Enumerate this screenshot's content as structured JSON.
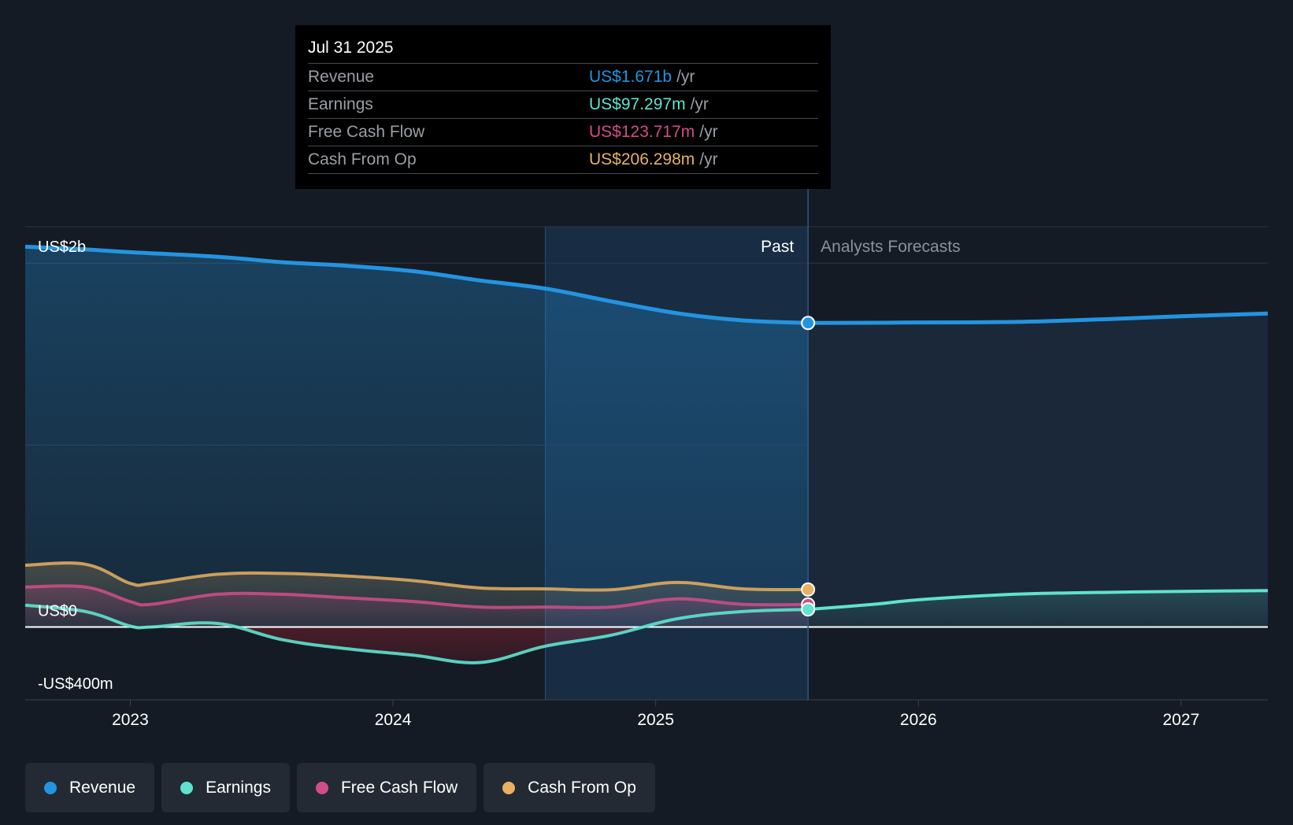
{
  "tooltip": {
    "date": "Jul 31 2025",
    "rows": [
      {
        "label": "Revenue",
        "value": "US$1.671b",
        "unit": "/yr",
        "color": "#2394e0"
      },
      {
        "label": "Earnings",
        "value": "US$97.297m",
        "unit": "/yr",
        "color": "#5fe3cf"
      },
      {
        "label": "Free Cash Flow",
        "value": "US$123.717m",
        "unit": "/yr",
        "color": "#d14d8a"
      },
      {
        "label": "Cash From Op",
        "value": "US$206.298m",
        "unit": "/yr",
        "color": "#e8b060"
      }
    ]
  },
  "labels": {
    "past": "Past",
    "forecast": "Analysts Forecasts"
  },
  "legend": [
    {
      "label": "Revenue",
      "color": "#2394e0"
    },
    {
      "label": "Earnings",
      "color": "#5fe3cf"
    },
    {
      "label": "Free Cash Flow",
      "color": "#d14d8a"
    },
    {
      "label": "Cash From Op",
      "color": "#e8b060"
    }
  ],
  "chart_data": {
    "type": "area",
    "y_tick_labels": [
      {
        "value": 2000,
        "label": "US$2b"
      },
      {
        "value": 0,
        "label": "US$0"
      },
      {
        "value": -400,
        "label": "-US$400m"
      }
    ],
    "ylim": [
      -400,
      2200
    ],
    "xlim": [
      2022.6,
      2027.33
    ],
    "x_ticks": [
      2023,
      2024,
      2025,
      2026,
      2027
    ],
    "grid": true,
    "divider_x": 2025.58,
    "highlight_start_x": 2024.58,
    "series": [
      {
        "name": "Revenue",
        "color": "#2394e0",
        "x": [
          2022.6,
          2022.83,
          2023.0,
          2023.33,
          2023.58,
          2023.83,
          2024.08,
          2024.33,
          2024.58,
          2024.83,
          2025.08,
          2025.33,
          2025.58
        ],
        "y": [
          2090,
          2075,
          2060,
          2035,
          2005,
          1985,
          1955,
          1905,
          1860,
          1790,
          1725,
          1685,
          1671
        ],
        "forecast": {
          "x": [
            2025.58,
            2025.83,
            2026.0,
            2026.33,
            2026.58,
            2026.83,
            2027.0,
            2027.33
          ],
          "y": [
            1671,
            1672,
            1674,
            1676,
            1685,
            1698,
            1708,
            1723
          ]
        }
      },
      {
        "name": "Earnings",
        "color": "#5fe3cf",
        "x": [
          2022.6,
          2022.83,
          2023.0,
          2023.08,
          2023.33,
          2023.58,
          2023.83,
          2024.08,
          2024.33,
          2024.58,
          2024.83,
          2025.08,
          2025.33,
          2025.58
        ],
        "y": [
          120,
          85,
          5,
          0,
          20,
          -70,
          -120,
          -155,
          -195,
          -105,
          -45,
          45,
          85,
          97
        ],
        "forecast": {
          "x": [
            2025.58,
            2025.83,
            2026.0,
            2026.33,
            2026.58,
            2026.83,
            2027.0,
            2027.33
          ],
          "y": [
            97,
            125,
            150,
            178,
            188,
            193,
            196,
            200
          ]
        }
      },
      {
        "name": "Free Cash Flow",
        "color": "#d14d8a",
        "x": [
          2022.6,
          2022.83,
          2023.0,
          2023.08,
          2023.33,
          2023.58,
          2023.83,
          2024.08,
          2024.33,
          2024.58,
          2024.83,
          2025.08,
          2025.33,
          2025.58
        ],
        "y": [
          220,
          220,
          140,
          125,
          180,
          180,
          160,
          140,
          110,
          110,
          110,
          155,
          125,
          124
        ]
      },
      {
        "name": "Cash From Op",
        "color": "#e8b060",
        "x": [
          2022.6,
          2022.83,
          2023.0,
          2023.08,
          2023.33,
          2023.58,
          2023.83,
          2024.08,
          2024.33,
          2024.58,
          2024.83,
          2025.08,
          2025.33,
          2025.58
        ],
        "y": [
          340,
          345,
          240,
          240,
          290,
          295,
          280,
          255,
          215,
          210,
          205,
          245,
          210,
          206
        ]
      }
    ]
  }
}
